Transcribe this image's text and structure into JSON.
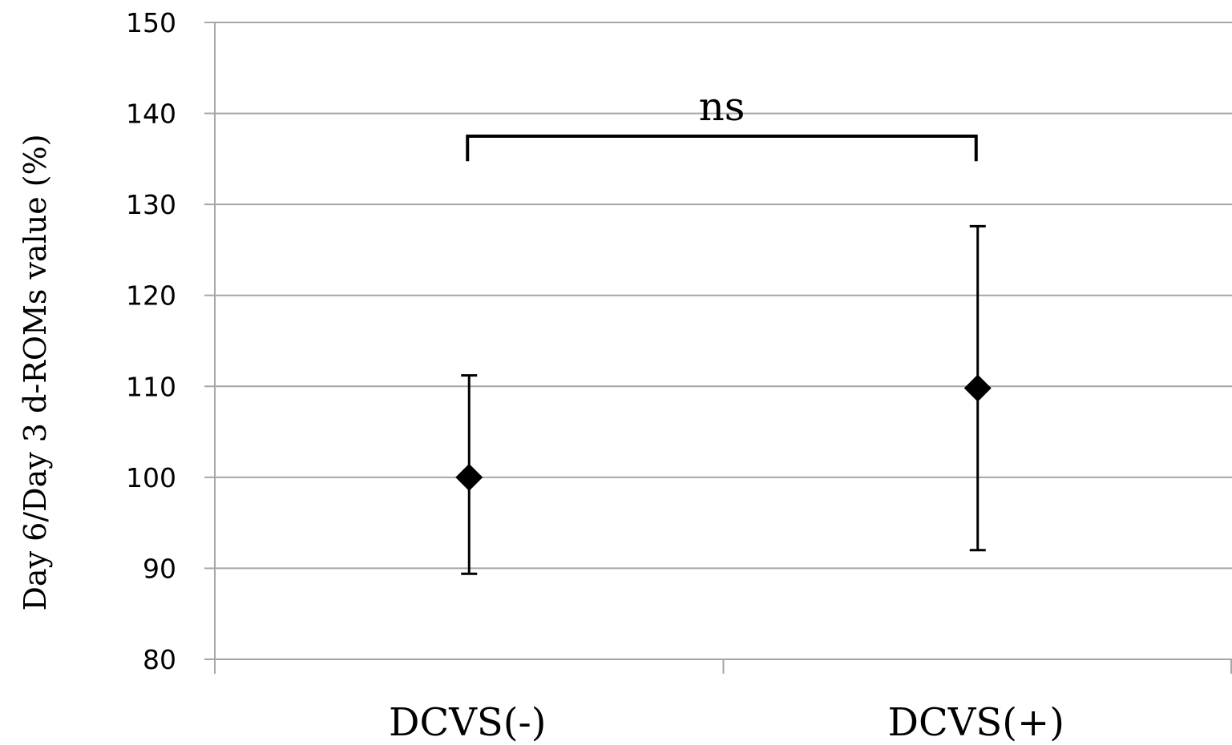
{
  "chart_data": {
    "type": "scatter",
    "title": "",
    "xlabel": "",
    "ylabel": "Day 6/Day 3 d-ROMs value (%)",
    "ylim": [
      80,
      150
    ],
    "yticks": [
      80,
      90,
      100,
      110,
      120,
      130,
      140,
      150
    ],
    "y_tick_labels": [
      "80",
      "90",
      "100",
      "110",
      "120",
      "130",
      "140",
      "150"
    ],
    "grid": true,
    "legend": "none",
    "categories": [
      "DCVS(-)",
      "DCVS(+)"
    ],
    "values": [
      100,
      109.8
    ],
    "error_low": [
      89.4,
      92.0
    ],
    "error_high": [
      111.2,
      127.6
    ],
    "marker": "diamond",
    "marker_color": "#000000",
    "gridline_color": "#a6a6a6",
    "annotations": [
      {
        "label": "ns",
        "type": "significance-bracket",
        "from_category": "DCVS(-)",
        "to_category": "DCVS(+)",
        "y_top": 137.5,
        "y_bottom": 135.8
      }
    ]
  }
}
